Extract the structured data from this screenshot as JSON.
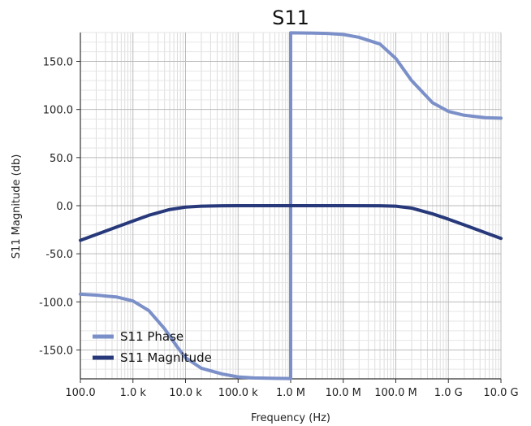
{
  "chart_data": {
    "type": "line",
    "title": "S11",
    "xlabel": "Frequency (Hz)",
    "ylabel": "S11 Magnitude (db)",
    "x_scale": "log",
    "xlim": [
      100,
      10000000000
    ],
    "ylim": [
      -180,
      180
    ],
    "x_ticks": [
      100,
      1000,
      10000,
      100000,
      1000000,
      10000000,
      100000000,
      1000000000,
      10000000000
    ],
    "x_tick_labels": [
      "100.0",
      "1.0 k",
      "10.0 k",
      "100.0 k",
      "1.0 M",
      "10.0 M",
      "100.0 M",
      "1.0 G",
      "10.0 G"
    ],
    "y_ticks": [
      -150,
      -100,
      -50,
      0,
      50,
      100,
      150
    ],
    "y_tick_labels": [
      "-150.0",
      "-100.0",
      "-50.0",
      "0.0",
      "50.0",
      "100.0",
      "150.0"
    ],
    "grid": true,
    "legend_position": "bottom-left",
    "series": [
      {
        "name": "S11 Phase",
        "color": "#7b8fc8",
        "x": [
          100,
          200,
          500,
          1000,
          2000,
          4000,
          7000,
          10000,
          20000,
          50000,
          100000,
          200000,
          500000,
          1000000,
          1000000,
          2000000,
          5000000,
          10000000,
          20000000,
          50000000,
          100000000,
          200000000,
          500000000,
          1000000000,
          2000000000,
          5000000000,
          10000000000
        ],
        "y": [
          -92,
          -93,
          -95,
          -99,
          -109,
          -128,
          -147,
          -158,
          -169,
          -175,
          -178,
          -179,
          -179.5,
          -179.7,
          179.7,
          179.5,
          179,
          178,
          175,
          168,
          153,
          130,
          107,
          98,
          94,
          91.5,
          91
        ]
      },
      {
        "name": "S11 Magnitude",
        "color": "#27397a",
        "x": [
          100,
          200,
          500,
          1000,
          2000,
          5000,
          10000,
          20000,
          50000,
          100000,
          1000000,
          10000000,
          50000000,
          100000000,
          200000000,
          500000000,
          1000000000,
          2000000000,
          5000000000,
          10000000000
        ],
        "y": [
          -36,
          -30,
          -22,
          -16,
          -10,
          -4,
          -1.5,
          -0.5,
          -0.1,
          0,
          0,
          0,
          -0.1,
          -0.5,
          -2.5,
          -8.5,
          -14,
          -20,
          -28,
          -34
        ]
      }
    ]
  }
}
